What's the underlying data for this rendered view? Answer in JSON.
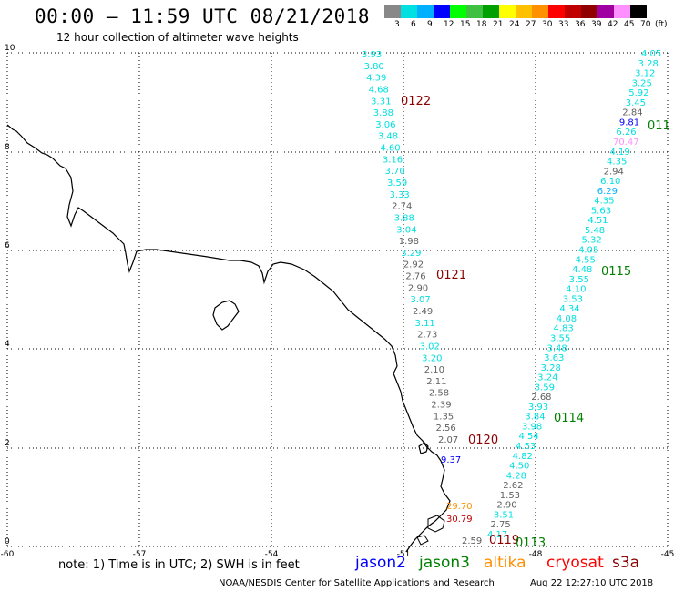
{
  "header": {
    "title": "00:00 – 11:59 UTC 08/21/2018",
    "subtitle": "12 hour collection of altimeter wave heights"
  },
  "colorbar": {
    "colors": [
      "#888888",
      "#00e0e0",
      "#00b0ff",
      "#0000ff",
      "#00ff00",
      "#40c040",
      "#00a000",
      "#ffff00",
      "#ffc000",
      "#ff9000",
      "#ff0000",
      "#c00000",
      "#900000",
      "#a000a0",
      "#ff90ff",
      "#000000"
    ],
    "labels": [
      "3",
      "6",
      "9",
      "12",
      "15",
      "18",
      "21",
      "24",
      "27",
      "30",
      "33",
      "36",
      "39",
      "42",
      "45",
      "70",
      "(ft)"
    ]
  },
  "axes": {
    "x_ticks": [
      "-60",
      "-57",
      "-54",
      "-51",
      "-48",
      "-45"
    ],
    "y_ticks": [
      "0",
      "2",
      "4",
      "6",
      "8",
      "10"
    ]
  },
  "tracks": [
    {
      "label": "0122",
      "color": "#8b0000"
    },
    {
      "label": "0121",
      "color": "#8b0000"
    },
    {
      "label": "0120",
      "color": "#8b0000"
    },
    {
      "label": "0119",
      "color": "#8b0000"
    },
    {
      "label": "0115",
      "color": "#008000"
    },
    {
      "label": "0114",
      "color": "#008000"
    },
    {
      "label": "0113",
      "color": "#008000"
    },
    {
      "label": "011",
      "color": "#008000"
    }
  ],
  "left_track_values": [
    {
      "v": "3.93",
      "c": "#00e0e0"
    },
    {
      "v": "3.80",
      "c": "#00e0e0"
    },
    {
      "v": "4.39",
      "c": "#00e0e0"
    },
    {
      "v": "4.68",
      "c": "#00e0e0"
    },
    {
      "v": "3.31",
      "c": "#00e0e0"
    },
    {
      "v": "3.88",
      "c": "#00e0e0"
    },
    {
      "v": "3.06",
      "c": "#00e0e0"
    },
    {
      "v": "3.48",
      "c": "#00e0e0"
    },
    {
      "v": "4.60",
      "c": "#00e0e0"
    },
    {
      "v": "3.16",
      "c": "#00e0e0"
    },
    {
      "v": "3.70",
      "c": "#00e0e0"
    },
    {
      "v": "3.59",
      "c": "#00e0e0"
    },
    {
      "v": "3.33",
      "c": "#00e0e0"
    },
    {
      "v": "2.74",
      "c": "#606060"
    },
    {
      "v": "3.88",
      "c": "#00e0e0"
    },
    {
      "v": "3.04",
      "c": "#00e0e0"
    },
    {
      "v": "1.98",
      "c": "#606060"
    },
    {
      "v": "3.29",
      "c": "#00e0e0"
    },
    {
      "v": "2.92",
      "c": "#606060"
    },
    {
      "v": "2.76",
      "c": "#606060"
    },
    {
      "v": "2.90",
      "c": "#606060"
    },
    {
      "v": "3.07",
      "c": "#00e0e0"
    },
    {
      "v": "2.49",
      "c": "#606060"
    },
    {
      "v": "3.11",
      "c": "#00e0e0"
    },
    {
      "v": "2.73",
      "c": "#606060"
    },
    {
      "v": "3.02",
      "c": "#00e0e0"
    },
    {
      "v": "3.20",
      "c": "#00e0e0"
    },
    {
      "v": "2.10",
      "c": "#606060"
    },
    {
      "v": "2.11",
      "c": "#606060"
    },
    {
      "v": "2.58",
      "c": "#606060"
    },
    {
      "v": "2.39",
      "c": "#606060"
    },
    {
      "v": "1.35",
      "c": "#606060"
    },
    {
      "v": "2.56",
      "c": "#606060"
    },
    {
      "v": "2.07",
      "c": "#606060"
    }
  ],
  "right_track_values": [
    {
      "v": "4.05",
      "c": "#00e0e0"
    },
    {
      "v": "3.28",
      "c": "#00e0e0"
    },
    {
      "v": "3.12",
      "c": "#00e0e0"
    },
    {
      "v": "3.25",
      "c": "#00e0e0"
    },
    {
      "v": "5.92",
      "c": "#00e0e0"
    },
    {
      "v": "3.45",
      "c": "#00e0e0"
    },
    {
      "v": "2.84",
      "c": "#606060"
    },
    {
      "v": "9.81",
      "c": "#0000ff"
    },
    {
      "v": "6.26",
      "c": "#00e0e0"
    },
    {
      "v": "70.47",
      "c": "#ff90ff"
    },
    {
      "v": "4.19",
      "c": "#00e0e0"
    },
    {
      "v": "4.35",
      "c": "#00e0e0"
    },
    {
      "v": "2.94",
      "c": "#606060"
    },
    {
      "v": "6.10",
      "c": "#00e0e0"
    },
    {
      "v": "6.29",
      "c": "#00b0ff"
    },
    {
      "v": "4.35",
      "c": "#00e0e0"
    },
    {
      "v": "5.63",
      "c": "#00e0e0"
    },
    {
      "v": "4.51",
      "c": "#00e0e0"
    },
    {
      "v": "5.48",
      "c": "#00e0e0"
    },
    {
      "v": "5.32",
      "c": "#00e0e0"
    },
    {
      "v": "4.05",
      "c": "#00e0e0"
    },
    {
      "v": "4.55",
      "c": "#00e0e0"
    },
    {
      "v": "4.48",
      "c": "#00e0e0"
    },
    {
      "v": "3.55",
      "c": "#00e0e0"
    },
    {
      "v": "4.10",
      "c": "#00e0e0"
    },
    {
      "v": "3.53",
      "c": "#00e0e0"
    },
    {
      "v": "4.34",
      "c": "#00e0e0"
    },
    {
      "v": "4.08",
      "c": "#00e0e0"
    },
    {
      "v": "4.83",
      "c": "#00e0e0"
    },
    {
      "v": "3.55",
      "c": "#00e0e0"
    },
    {
      "v": "3.48",
      "c": "#00e0e0"
    },
    {
      "v": "3.63",
      "c": "#00e0e0"
    },
    {
      "v": "3.28",
      "c": "#00e0e0"
    },
    {
      "v": "3.24",
      "c": "#00e0e0"
    },
    {
      "v": "3.59",
      "c": "#00e0e0"
    },
    {
      "v": "2.68",
      "c": "#606060"
    },
    {
      "v": "3.93",
      "c": "#00e0e0"
    },
    {
      "v": "3.84",
      "c": "#00e0e0"
    },
    {
      "v": "3.98",
      "c": "#00e0e0"
    },
    {
      "v": "4.54",
      "c": "#00e0e0"
    },
    {
      "v": "4.53",
      "c": "#00e0e0"
    },
    {
      "v": "4.82",
      "c": "#00e0e0"
    },
    {
      "v": "4.50",
      "c": "#00e0e0"
    },
    {
      "v": "4.28",
      "c": "#00e0e0"
    },
    {
      "v": "2.62",
      "c": "#606060"
    },
    {
      "v": "1.53",
      "c": "#606060"
    },
    {
      "v": "2.90",
      "c": "#606060"
    },
    {
      "v": "3.51",
      "c": "#00e0e0"
    },
    {
      "v": "2.75",
      "c": "#606060"
    },
    {
      "v": "4.17",
      "c": "#00e0e0"
    }
  ],
  "isolated_values": [
    {
      "v": "9.37",
      "c": "#0000ff"
    },
    {
      "v": "29.70",
      "c": "#ff9000"
    },
    {
      "v": "30.79",
      "c": "#c00000"
    },
    {
      "v": "2.59",
      "c": "#606060"
    }
  ],
  "note": "note:  1) Time is in UTC;  2) SWH is in feet",
  "satellites": [
    {
      "name": "jason2",
      "color": "#0000ff"
    },
    {
      "name": "jason3",
      "color": "#008000"
    },
    {
      "name": "altika",
      "color": "#ff9000"
    },
    {
      "name": "cryosat",
      "color": "#ff0000"
    },
    {
      "name": "s3a",
      "color": "#8b0000"
    }
  ],
  "footer": {
    "credit": "NOAA/NESDIS Center for Satellite Applications and Research",
    "timestamp": "Aug 22 12:27:10 UTC 2018"
  }
}
